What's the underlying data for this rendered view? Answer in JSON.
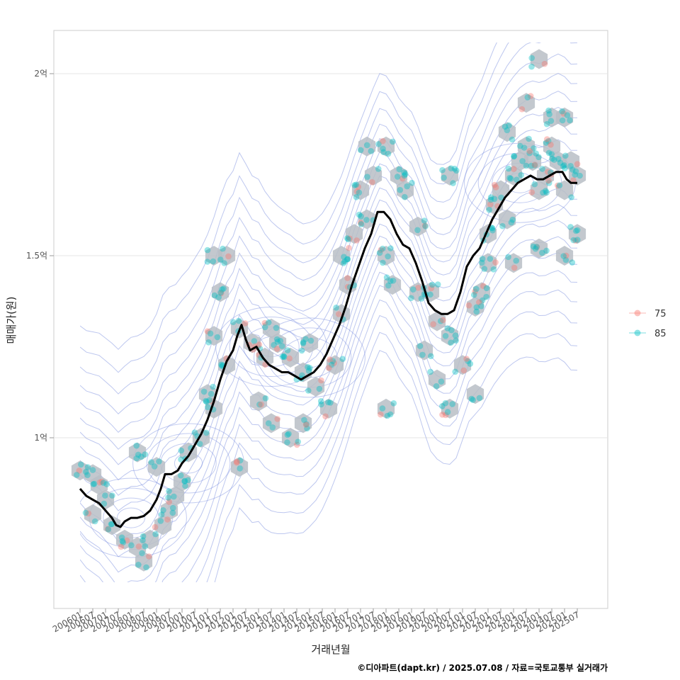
{
  "chart_data": {
    "type": "scatter",
    "xlabel": "거래년월",
    "ylabel": "매매가(원)",
    "caption": "©디아파트(dapt.kr) / 2025.07.08 / 자료=국토교통부 실거래가",
    "x_range": [
      "2006-01",
      "2025-07"
    ],
    "y_range": [
      60000,
      210000
    ],
    "y_ticks": [
      {
        "value": 100000,
        "label": "1억"
      },
      {
        "value": 150000,
        "label": "1.5억"
      },
      {
        "value": 200000,
        "label": "2억"
      }
    ],
    "x_ticks": [
      "200601",
      "200607",
      "200701",
      "200707",
      "200801",
      "200807",
      "200901",
      "200907",
      "201001",
      "201007",
      "201101",
      "201107",
      "201201",
      "201207",
      "201301",
      "201307",
      "201401",
      "201407",
      "201501",
      "201507",
      "201601",
      "201607",
      "201701",
      "201707",
      "201801",
      "201807",
      "201901",
      "201907",
      "202001",
      "202007",
      "202101",
      "202107",
      "202201",
      "202207",
      "202301",
      "202307",
      "202401",
      "202407",
      "202501",
      "202507"
    ],
    "grid": true,
    "legend": {
      "position": "right",
      "entries": [
        {
          "label": "75",
          "color": "#F8766D"
        },
        {
          "label": "85",
          "color": "#00BFC4"
        }
      ]
    },
    "series": [
      {
        "name": "85",
        "color": "#00BFC4",
        "note": "transaction points"
      },
      {
        "name": "75",
        "color": "#F8766D",
        "note": "transaction points"
      }
    ],
    "trend_line": {
      "color": "#000000",
      "points": [
        [
          "2006-01",
          86000
        ],
        [
          "2006-04",
          84000
        ],
        [
          "2006-07",
          83000
        ],
        [
          "2006-10",
          82000
        ],
        [
          "2007-01",
          80000
        ],
        [
          "2007-04",
          78000
        ],
        [
          "2007-06",
          76000
        ],
        [
          "2007-08",
          75500
        ],
        [
          "2007-10",
          77000
        ],
        [
          "2008-01",
          78000
        ],
        [
          "2008-04",
          78000
        ],
        [
          "2008-07",
          78500
        ],
        [
          "2008-10",
          80000
        ],
        [
          "2009-01",
          83000
        ],
        [
          "2009-03",
          86000
        ],
        [
          "2009-05",
          90000
        ],
        [
          "2009-08",
          90000
        ],
        [
          "2009-11",
          91000
        ],
        [
          "2010-01",
          93000
        ],
        [
          "2010-04",
          95000
        ],
        [
          "2010-07",
          98000
        ],
        [
          "2010-10",
          101000
        ],
        [
          "2011-01",
          105000
        ],
        [
          "2011-04",
          110000
        ],
        [
          "2011-07",
          116000
        ],
        [
          "2011-10",
          121000
        ],
        [
          "2012-01",
          124000
        ],
        [
          "2012-03",
          128000
        ],
        [
          "2012-05",
          131000
        ],
        [
          "2012-07",
          127000
        ],
        [
          "2012-09",
          124000
        ],
        [
          "2012-12",
          125000
        ],
        [
          "2013-03",
          122000
        ],
        [
          "2013-06",
          120000
        ],
        [
          "2013-09",
          119000
        ],
        [
          "2013-12",
          118000
        ],
        [
          "2014-03",
          118000
        ],
        [
          "2014-06",
          117000
        ],
        [
          "2014-09",
          116000
        ],
        [
          "2014-12",
          117000
        ],
        [
          "2015-03",
          118000
        ],
        [
          "2015-06",
          120000
        ],
        [
          "2015-09",
          123000
        ],
        [
          "2015-12",
          127000
        ],
        [
          "2016-03",
          131000
        ],
        [
          "2016-06",
          136000
        ],
        [
          "2016-09",
          142000
        ],
        [
          "2016-12",
          147000
        ],
        [
          "2017-03",
          152000
        ],
        [
          "2017-06",
          156000
        ],
        [
          "2017-09",
          162000
        ],
        [
          "2017-12",
          162000
        ],
        [
          "2018-03",
          160000
        ],
        [
          "2018-06",
          156000
        ],
        [
          "2018-09",
          153000
        ],
        [
          "2018-12",
          152000
        ],
        [
          "2019-03",
          148000
        ],
        [
          "2019-06",
          143000
        ],
        [
          "2019-09",
          137000
        ],
        [
          "2019-12",
          135000
        ],
        [
          "2020-03",
          134000
        ],
        [
          "2020-06",
          134000
        ],
        [
          "2020-09",
          135000
        ],
        [
          "2020-12",
          140000
        ],
        [
          "2021-03",
          147000
        ],
        [
          "2021-06",
          150000
        ],
        [
          "2021-09",
          152000
        ],
        [
          "2021-12",
          156000
        ],
        [
          "2022-03",
          160000
        ],
        [
          "2022-06",
          163000
        ],
        [
          "2022-09",
          166000
        ],
        [
          "2022-12",
          168000
        ],
        [
          "2023-03",
          170000
        ],
        [
          "2023-06",
          171000
        ],
        [
          "2023-09",
          172000
        ],
        [
          "2023-12",
          171000
        ],
        [
          "2024-03",
          171000
        ],
        [
          "2024-06",
          172000
        ],
        [
          "2024-09",
          173000
        ],
        [
          "2024-12",
          173000
        ],
        [
          "2025-02",
          171000
        ],
        [
          "2025-04",
          170000
        ],
        [
          "2025-07",
          170000
        ]
      ]
    },
    "hex_centers": [
      [
        "2006-01",
        91000
      ],
      [
        "2006-07",
        90000
      ],
      [
        "2006-10",
        87000
      ],
      [
        "2007-01",
        83000
      ],
      [
        "2006-07",
        79000
      ],
      [
        "2007-04",
        76000
      ],
      [
        "2007-10",
        72000
      ],
      [
        "2008-04",
        70000
      ],
      [
        "2008-07",
        66000
      ],
      [
        "2008-10",
        72000
      ],
      [
        "2009-04",
        76000
      ],
      [
        "2009-07",
        80000
      ],
      [
        "2009-10",
        84000
      ],
      [
        "2010-01",
        88000
      ],
      [
        "2008-04",
        96000
      ],
      [
        "2009-01",
        92000
      ],
      [
        "2010-04",
        96000
      ],
      [
        "2010-10",
        100000
      ],
      [
        "2011-04",
        108000
      ],
      [
        "2011-01",
        112000
      ],
      [
        "2011-04",
        128000
      ],
      [
        "2011-07",
        140000
      ],
      [
        "2011-04",
        150000
      ],
      [
        "2011-10",
        150000
      ],
      [
        "2011-10",
        120000
      ],
      [
        "2012-04",
        130000
      ],
      [
        "2012-10",
        126000
      ],
      [
        "2013-04",
        122000
      ],
      [
        "2013-07",
        130000
      ],
      [
        "2013-10",
        126000
      ],
      [
        "2014-04",
        122000
      ],
      [
        "2014-10",
        118000
      ],
      [
        "2015-01",
        126000
      ],
      [
        "2015-04",
        114000
      ],
      [
        "2015-10",
        108000
      ],
      [
        "2013-01",
        110000
      ],
      [
        "2013-07",
        104000
      ],
      [
        "2014-04",
        100000
      ],
      [
        "2014-10",
        104000
      ],
      [
        "2016-01",
        120000
      ],
      [
        "2016-04",
        134000
      ],
      [
        "2016-07",
        142000
      ],
      [
        "2016-04",
        150000
      ],
      [
        "2016-10",
        156000
      ],
      [
        "2017-04",
        160000
      ],
      [
        "2017-01",
        168000
      ],
      [
        "2017-07",
        172000
      ],
      [
        "2017-04",
        180000
      ],
      [
        "2018-01",
        180000
      ],
      [
        "2018-07",
        172000
      ],
      [
        "2018-10",
        168000
      ],
      [
        "2018-01",
        150000
      ],
      [
        "2018-04",
        142000
      ],
      [
        "2019-04",
        158000
      ],
      [
        "2019-04",
        140000
      ],
      [
        "2019-10",
        140000
      ],
      [
        "2020-01",
        132000
      ],
      [
        "2019-07",
        124000
      ],
      [
        "2020-07",
        128000
      ],
      [
        "2020-01",
        116000
      ],
      [
        "2020-07",
        108000
      ],
      [
        "2021-01",
        120000
      ],
      [
        "2021-07",
        112000
      ],
      [
        "2021-07",
        136000
      ],
      [
        "2021-10",
        140000
      ],
      [
        "2022-01",
        148000
      ],
      [
        "2022-01",
        156000
      ],
      [
        "2022-04",
        164000
      ],
      [
        "2022-07",
        168000
      ],
      [
        "2022-10",
        160000
      ],
      [
        "2023-01",
        172000
      ],
      [
        "2023-04",
        176000
      ],
      [
        "2023-07",
        180000
      ],
      [
        "2023-10",
        176000
      ],
      [
        "2024-01",
        168000
      ],
      [
        "2024-04",
        172000
      ],
      [
        "2024-07",
        180000
      ],
      [
        "2024-10",
        176000
      ],
      [
        "2025-01",
        168000
      ],
      [
        "2025-04",
        176000
      ],
      [
        "2023-07",
        192000
      ],
      [
        "2024-07",
        188000
      ],
      [
        "2025-01",
        188000
      ],
      [
        "2024-01",
        204000
      ],
      [
        "2025-07",
        156000
      ],
      [
        "2025-07",
        172000
      ],
      [
        "2022-10",
        184000
      ],
      [
        "2023-01",
        148000
      ],
      [
        "2024-01",
        152000
      ],
      [
        "2025-01",
        150000
      ],
      [
        "2018-01",
        108000
      ],
      [
        "2012-04",
        92000
      ],
      [
        "2020-07",
        172000
      ]
    ]
  }
}
